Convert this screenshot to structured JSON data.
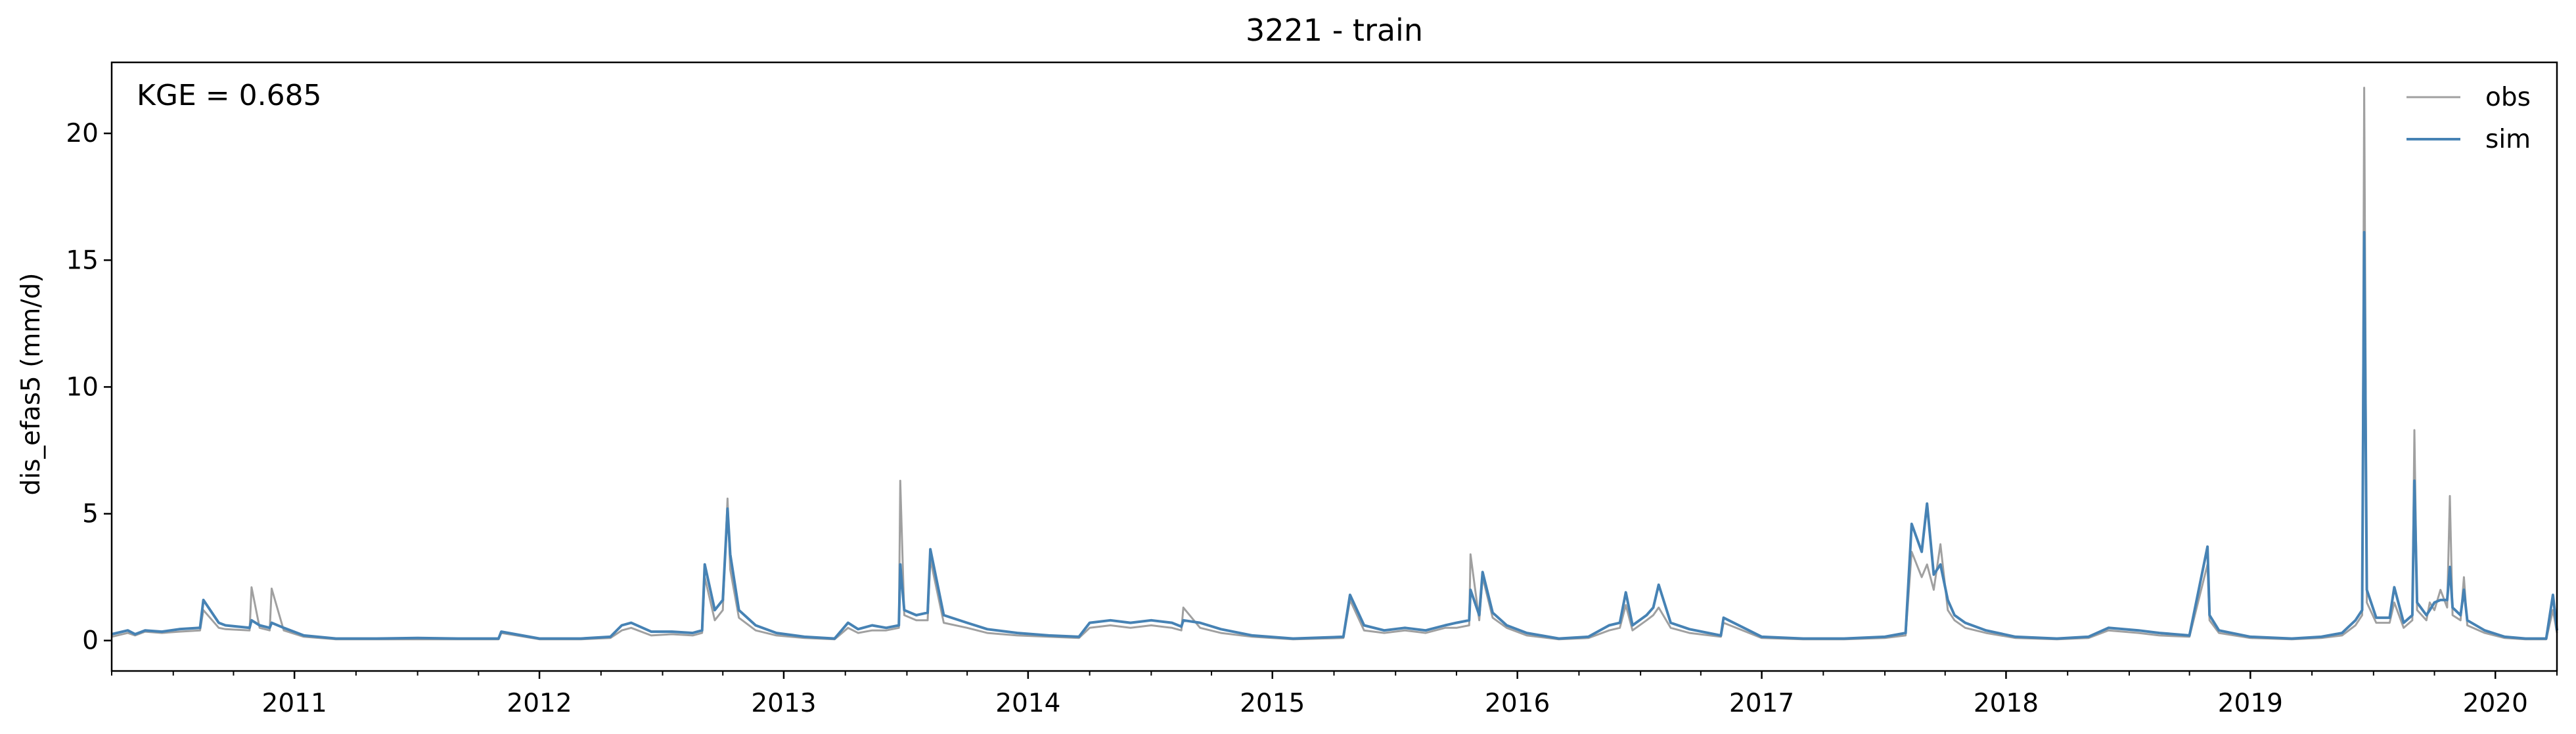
{
  "chart_data": {
    "type": "line",
    "title": "3221 - train",
    "xlabel": "",
    "ylabel": "dis_efas5 (mm/d)",
    "annotation": "KGE = 0.685",
    "xlim": [
      "2010-10-01",
      "2020-10-01"
    ],
    "ylim": [
      -1.2,
      22.8
    ],
    "yticks": [
      0,
      5,
      10,
      15,
      20
    ],
    "xticks": [
      "2011",
      "2012",
      "2013",
      "2014",
      "2015",
      "2016",
      "2017",
      "2018",
      "2019",
      "2020"
    ],
    "grid": false,
    "legend_position": "top-right",
    "colors": {
      "obs": "#a0a0a0",
      "sim": "#4682b4"
    },
    "series": [
      {
        "name": "obs",
        "x": [
          "2010-10-01",
          "2010-10-25",
          "2010-11-05",
          "2010-11-20",
          "2010-12-15",
          "2011-01-10",
          "2011-02-10",
          "2011-02-15",
          "2011-03-10",
          "2011-03-20",
          "2011-04-25",
          "2011-04-28",
          "2011-05-10",
          "2011-05-25",
          "2011-05-28",
          "2011-06-15",
          "2011-07-15",
          "2011-09-01",
          "2011-11-01",
          "2012-01-01",
          "2012-03-01",
          "2012-05-01",
          "2012-05-05",
          "2012-07-01",
          "2012-09-01",
          "2012-10-15",
          "2012-11-01",
          "2012-11-15",
          "2012-12-15",
          "2013-01-15",
          "2013-02-15",
          "2013-03-01",
          "2013-03-05",
          "2013-03-20",
          "2013-04-01",
          "2013-04-08",
          "2013-04-12",
          "2013-04-25",
          "2013-05-20",
          "2013-06-20",
          "2013-08-01",
          "2013-09-15",
          "2013-10-05",
          "2013-10-20",
          "2013-11-10",
          "2013-12-01",
          "2013-12-20",
          "2013-12-22",
          "2013-12-28",
          "2014-01-15",
          "2014-02-01",
          "2014-02-05",
          "2014-02-25",
          "2014-04-01",
          "2014-05-01",
          "2014-06-15",
          "2014-08-01",
          "2014-09-15",
          "2014-10-01",
          "2014-11-01",
          "2014-12-01",
          "2015-01-01",
          "2015-02-01",
          "2015-02-15",
          "2015-02-18",
          "2015-03-15",
          "2015-04-15",
          "2015-06-01",
          "2015-08-01",
          "2015-10-15",
          "2015-10-25",
          "2015-11-15",
          "2015-12-15",
          "2016-01-15",
          "2016-02-15",
          "2016-03-15",
          "2016-04-01",
          "2016-04-20",
          "2016-04-22",
          "2016-05-05",
          "2016-05-10",
          "2016-05-25",
          "2016-06-15",
          "2016-07-15",
          "2016-09-01",
          "2016-10-15",
          "2016-11-15",
          "2016-12-01",
          "2016-12-10",
          "2016-12-20",
          "2017-01-10",
          "2017-01-20",
          "2017-01-28",
          "2017-02-15",
          "2017-03-15",
          "2017-05-01",
          "2017-05-05",
          "2017-07-01",
          "2017-09-01",
          "2017-11-01",
          "2018-01-01",
          "2018-02-01",
          "2018-02-10",
          "2018-02-25",
          "2018-03-05",
          "2018-03-15",
          "2018-03-25",
          "2018-04-05",
          "2018-04-15",
          "2018-05-01",
          "2018-06-01",
          "2018-07-15",
          "2018-09-15",
          "2018-11-01",
          "2018-12-01",
          "2019-01-15",
          "2019-02-15",
          "2019-04-01",
          "2019-04-28",
          "2019-05-01",
          "2019-05-15",
          "2019-07-01",
          "2019-09-01",
          "2019-10-15",
          "2019-11-15",
          "2019-12-05",
          "2019-12-15",
          "2019-12-18",
          "2019-12-22",
          "2020-01-05",
          "2020-01-25",
          "2020-02-01",
          "2020-02-15",
          "2020-02-28",
          "2020-03-02",
          "2020-03-06",
          "2020-03-20",
          "2020-03-25",
          "2020-04-01",
          "2020-04-10",
          "2020-04-20",
          "2020-04-24",
          "2020-04-28",
          "2020-05-10",
          "2020-05-15",
          "2020-05-20",
          "2020-06-15",
          "2020-07-15",
          "2020-08-15",
          "2020-09-15",
          "2020-09-25",
          "2020-10-01"
        ],
        "y": [
          0.15,
          0.3,
          0.2,
          0.35,
          0.3,
          0.35,
          0.4,
          1.2,
          0.5,
          0.45,
          0.4,
          2.1,
          0.5,
          0.4,
          2.05,
          0.4,
          0.15,
          0.05,
          0.05,
          0.05,
          0.05,
          0.05,
          0.3,
          0.05,
          0.05,
          0.1,
          0.4,
          0.5,
          0.2,
          0.25,
          0.2,
          0.3,
          2.5,
          0.8,
          1.2,
          5.6,
          2.8,
          0.9,
          0.4,
          0.2,
          0.1,
          0.05,
          0.5,
          0.3,
          0.4,
          0.4,
          0.5,
          6.3,
          1.0,
          0.8,
          0.8,
          3.2,
          0.7,
          0.5,
          0.3,
          0.2,
          0.15,
          0.1,
          0.5,
          0.6,
          0.5,
          0.6,
          0.5,
          0.4,
          1.3,
          0.5,
          0.3,
          0.15,
          0.05,
          0.1,
          1.6,
          0.4,
          0.3,
          0.4,
          0.3,
          0.5,
          0.5,
          0.6,
          3.4,
          0.8,
          2.5,
          0.9,
          0.5,
          0.2,
          0.05,
          0.1,
          0.4,
          0.5,
          1.4,
          0.4,
          0.8,
          1.0,
          1.3,
          0.5,
          0.3,
          0.15,
          0.7,
          0.1,
          0.05,
          0.05,
          0.1,
          0.2,
          3.5,
          2.5,
          3.0,
          2.0,
          3.8,
          1.2,
          0.8,
          0.5,
          0.3,
          0.1,
          0.05,
          0.1,
          0.4,
          0.3,
          0.2,
          0.15,
          3.0,
          0.8,
          0.3,
          0.1,
          0.05,
          0.1,
          0.2,
          0.6,
          1.0,
          21.8,
          1.5,
          0.7,
          0.7,
          1.5,
          0.5,
          0.8,
          8.3,
          1.2,
          0.8,
          1.5,
          1.2,
          2.0,
          1.3,
          5.7,
          1.0,
          0.8,
          2.5,
          0.6,
          0.3,
          0.1,
          0.05,
          0.05,
          1.2,
          0.3
        ]
      },
      {
        "name": "sim",
        "x": [
          "2010-10-01",
          "2010-10-25",
          "2010-11-05",
          "2010-11-20",
          "2010-12-15",
          "2011-01-10",
          "2011-02-10",
          "2011-02-15",
          "2011-03-10",
          "2011-03-20",
          "2011-04-25",
          "2011-04-28",
          "2011-05-10",
          "2011-05-25",
          "2011-05-28",
          "2011-06-15",
          "2011-07-15",
          "2011-09-01",
          "2011-11-01",
          "2012-01-01",
          "2012-03-01",
          "2012-05-01",
          "2012-05-05",
          "2012-07-01",
          "2012-09-01",
          "2012-10-15",
          "2012-11-01",
          "2012-11-15",
          "2012-12-15",
          "2013-01-15",
          "2013-02-15",
          "2013-03-01",
          "2013-03-05",
          "2013-03-20",
          "2013-04-01",
          "2013-04-08",
          "2013-04-12",
          "2013-04-25",
          "2013-05-20",
          "2013-06-20",
          "2013-08-01",
          "2013-09-15",
          "2013-10-05",
          "2013-10-20",
          "2013-11-10",
          "2013-12-01",
          "2013-12-20",
          "2013-12-22",
          "2013-12-28",
          "2014-01-15",
          "2014-02-01",
          "2014-02-05",
          "2014-02-25",
          "2014-04-01",
          "2014-05-01",
          "2014-06-15",
          "2014-08-01",
          "2014-09-15",
          "2014-10-01",
          "2014-11-01",
          "2014-12-01",
          "2015-01-01",
          "2015-02-01",
          "2015-02-15",
          "2015-02-18",
          "2015-03-15",
          "2015-04-15",
          "2015-06-01",
          "2015-08-01",
          "2015-10-15",
          "2015-10-25",
          "2015-11-15",
          "2015-12-15",
          "2016-01-15",
          "2016-02-15",
          "2016-03-15",
          "2016-04-01",
          "2016-04-20",
          "2016-04-22",
          "2016-05-05",
          "2016-05-10",
          "2016-05-25",
          "2016-06-15",
          "2016-07-15",
          "2016-09-01",
          "2016-10-15",
          "2016-11-15",
          "2016-12-01",
          "2016-12-10",
          "2016-12-20",
          "2017-01-10",
          "2017-01-20",
          "2017-01-28",
          "2017-02-15",
          "2017-03-15",
          "2017-05-01",
          "2017-05-05",
          "2017-07-01",
          "2017-09-01",
          "2017-11-01",
          "2018-01-01",
          "2018-02-01",
          "2018-02-10",
          "2018-02-25",
          "2018-03-05",
          "2018-03-15",
          "2018-03-25",
          "2018-04-05",
          "2018-04-15",
          "2018-05-01",
          "2018-06-01",
          "2018-07-15",
          "2018-09-15",
          "2018-11-01",
          "2018-12-01",
          "2019-01-15",
          "2019-02-15",
          "2019-04-01",
          "2019-04-28",
          "2019-05-01",
          "2019-05-15",
          "2019-07-01",
          "2019-09-01",
          "2019-10-15",
          "2019-11-15",
          "2019-12-05",
          "2019-12-15",
          "2019-12-18",
          "2019-12-22",
          "2020-01-05",
          "2020-01-25",
          "2020-02-01",
          "2020-02-15",
          "2020-02-28",
          "2020-03-02",
          "2020-03-06",
          "2020-03-20",
          "2020-03-25",
          "2020-04-01",
          "2020-04-10",
          "2020-04-20",
          "2020-04-24",
          "2020-04-28",
          "2020-05-10",
          "2020-05-15",
          "2020-05-20",
          "2020-06-15",
          "2020-07-15",
          "2020-08-15",
          "2020-09-15",
          "2020-09-25",
          "2020-10-01"
        ],
        "y": [
          0.25,
          0.4,
          0.25,
          0.4,
          0.35,
          0.45,
          0.5,
          1.6,
          0.7,
          0.6,
          0.5,
          0.8,
          0.6,
          0.5,
          0.7,
          0.5,
          0.2,
          0.08,
          0.08,
          0.1,
          0.08,
          0.08,
          0.35,
          0.08,
          0.08,
          0.15,
          0.6,
          0.7,
          0.35,
          0.35,
          0.3,
          0.4,
          3.0,
          1.2,
          1.6,
          5.2,
          3.4,
          1.2,
          0.6,
          0.3,
          0.15,
          0.08,
          0.7,
          0.45,
          0.6,
          0.5,
          0.6,
          3.0,
          1.2,
          1.0,
          1.1,
          3.6,
          1.0,
          0.7,
          0.45,
          0.3,
          0.2,
          0.15,
          0.7,
          0.8,
          0.7,
          0.8,
          0.7,
          0.55,
          0.8,
          0.7,
          0.45,
          0.2,
          0.08,
          0.15,
          1.8,
          0.6,
          0.4,
          0.5,
          0.4,
          0.6,
          0.7,
          0.8,
          2.0,
          1.0,
          2.7,
          1.1,
          0.6,
          0.3,
          0.08,
          0.15,
          0.6,
          0.7,
          1.9,
          0.6,
          1.0,
          1.3,
          2.2,
          0.7,
          0.45,
          0.2,
          0.9,
          0.15,
          0.08,
          0.08,
          0.15,
          0.3,
          4.6,
          3.5,
          5.4,
          2.6,
          3.0,
          1.6,
          1.0,
          0.7,
          0.4,
          0.15,
          0.08,
          0.15,
          0.5,
          0.4,
          0.3,
          0.2,
          3.7,
          1.0,
          0.4,
          0.15,
          0.08,
          0.15,
          0.3,
          0.8,
          1.2,
          16.1,
          2.0,
          0.9,
          0.9,
          2.1,
          0.7,
          1.0,
          6.3,
          1.5,
          1.0,
          1.2,
          1.5,
          1.6,
          1.6,
          2.9,
          1.3,
          1.0,
          2.0,
          0.8,
          0.4,
          0.15,
          0.08,
          0.08,
          1.8,
          0.4
        ]
      }
    ]
  }
}
